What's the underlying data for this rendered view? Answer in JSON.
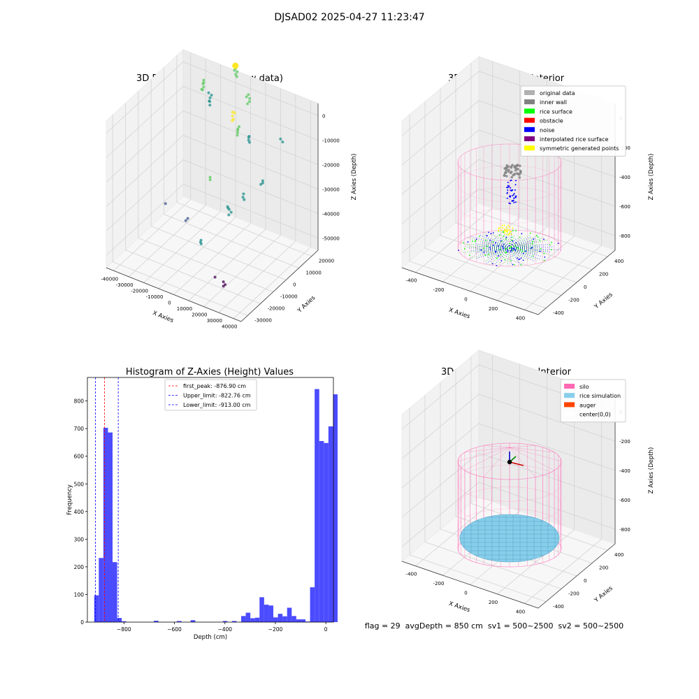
{
  "suptitle": "DJSAD02 2025-04-27 11:23:47",
  "footer": "flag = 29  avgDepth = 850 cm  sv1 = 500~2500  sv2 = 500~2500",
  "chart_data": [
    {
      "type": "scatter",
      "title": "3D Plot of Silo Interior(row data)",
      "xlabel": "X Axies",
      "ylabel": "Y Axies",
      "zlabel": "Z Axies (Depth)",
      "x_ticks": [
        "-40000",
        "-30000",
        "-20000",
        "-10000",
        "0",
        "10000",
        "20000",
        "30000",
        "40000"
      ],
      "y_ticks": [
        "-30000",
        "-20000",
        "-10000",
        "0",
        "10000",
        "20000"
      ],
      "z_ticks": [
        "0",
        "-10000",
        "-20000",
        "-30000",
        "-40000",
        "-50000"
      ],
      "colors": [
        "#440154",
        "#3b528b",
        "#21918c",
        "#5ec962",
        "#fde725"
      ]
    },
    {
      "type": "scatter",
      "title": "3D classify of Silo Interior",
      "xlabel": "X Axies",
      "ylabel": "Y Axies",
      "zlabel": "Z Axies (Depth)",
      "x_ticks": [
        "-400",
        "-200",
        "0",
        "200",
        "400"
      ],
      "y_ticks": [
        "-400",
        "-200",
        "0",
        "200",
        "400"
      ],
      "z_ticks": [
        "0",
        "-200",
        "-400",
        "-600",
        "-800"
      ],
      "legend": [
        {
          "label": "original data",
          "color": "#b0b0b0"
        },
        {
          "label": "inner wall",
          "color": "#808080"
        },
        {
          "label": "rice surface",
          "color": "#00ff00"
        },
        {
          "label": "obstacle",
          "color": "#ff0000"
        },
        {
          "label": "noise",
          "color": "#0000ff"
        },
        {
          "label": "interpolated rice surface",
          "color": "#800080"
        },
        {
          "label": "symmetric generated points",
          "color": "#ffff00"
        }
      ]
    },
    {
      "type": "bar",
      "title": "Histogram of Z-Axies (Height) Values",
      "xlabel": "Depth (cm)",
      "ylabel": "Frequency",
      "xlim": [
        -945,
        30
      ],
      "ylim": [
        0,
        885
      ],
      "x_ticks": [
        -800,
        -600,
        -400,
        -200,
        0
      ],
      "y_ticks": [
        0,
        100,
        200,
        300,
        400,
        500,
        600,
        700,
        800
      ],
      "bin_start": -918,
      "bin_width": 18.2,
      "values": [
        97,
        232,
        703,
        686,
        217,
        15,
        3,
        0,
        0,
        0,
        0,
        0,
        0,
        5,
        0,
        0,
        0,
        0,
        4,
        0,
        0,
        7,
        0,
        0,
        0,
        0,
        0,
        0,
        4,
        0,
        4,
        0,
        22,
        34,
        14,
        16,
        90,
        63,
        60,
        17,
        30,
        21,
        52,
        22,
        10,
        10,
        2,
        126,
        843,
        655,
        648,
        708,
        824
      ],
      "bar_color": "#4b4bff",
      "vlines": [
        {
          "label": "first_peak: -876.90 cm",
          "x": -876.9,
          "color": "#ff0000"
        },
        {
          "label": "Upper_limit: -822.76 cm",
          "x": -822.76,
          "color": "#0000ff"
        },
        {
          "label": "Lower_limit: -913.00 cm",
          "x": -913.0,
          "color": "#0000ff"
        }
      ]
    },
    {
      "type": "scatter",
      "title": "3D simulation of Silo Interior",
      "xlabel": "X Axies",
      "ylabel": "Y Axies",
      "zlabel": "Z Axies (Depth)",
      "x_ticks": [
        "-400",
        "-200",
        "0",
        "200",
        "400"
      ],
      "y_ticks": [
        "-400",
        "-200",
        "0",
        "200",
        "400"
      ],
      "z_ticks": [
        "0",
        "-200",
        "-400",
        "-600",
        "-800"
      ],
      "legend": [
        {
          "label": "silo",
          "color": "#ff69b4"
        },
        {
          "label": "rice simulation",
          "color": "#87ceeb"
        },
        {
          "label": "auger",
          "color": "#ff4500"
        },
        {
          "label": "center(0,0)",
          "color": "#ffffff"
        }
      ]
    }
  ]
}
